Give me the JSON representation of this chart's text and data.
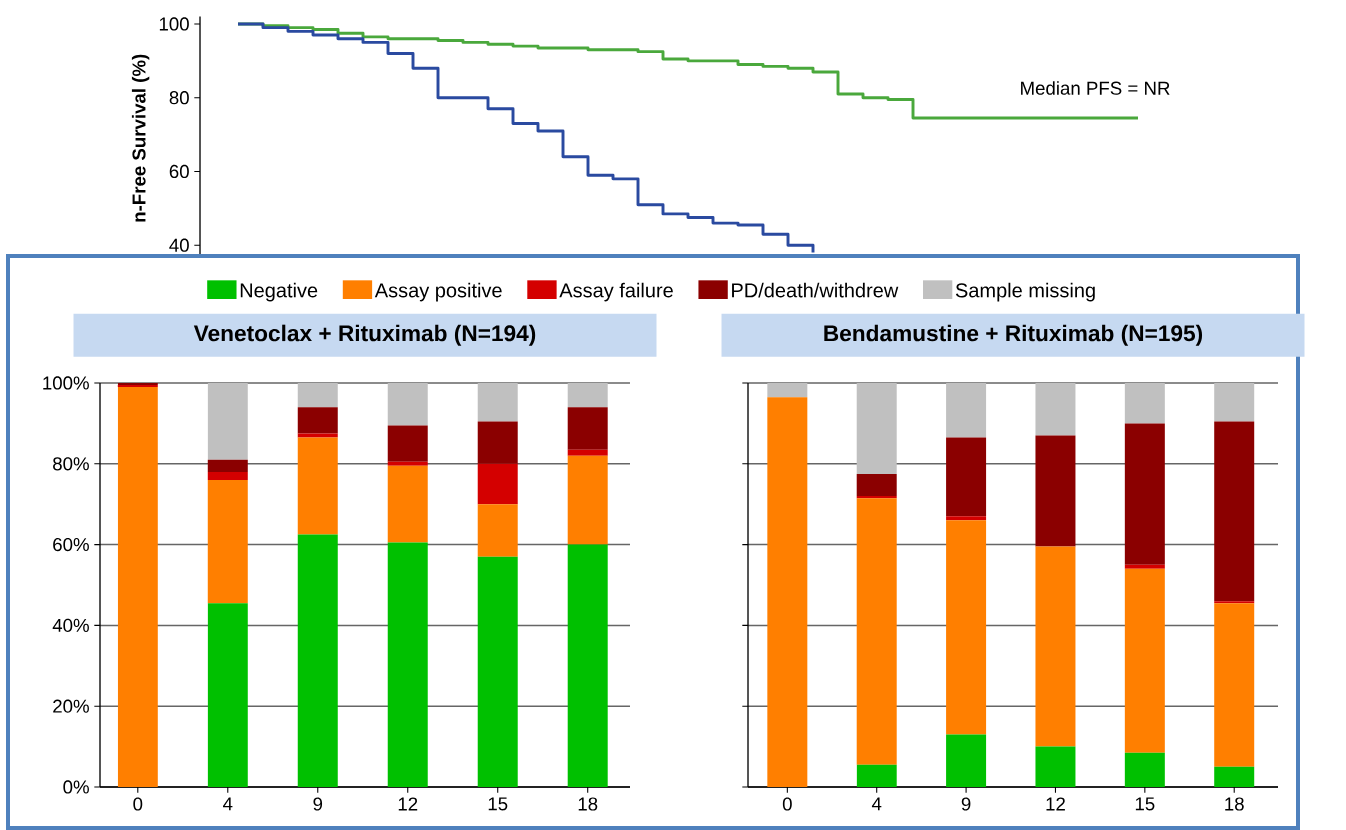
{
  "chart_data": [
    {
      "type": "step",
      "ylabel": "n-Free Survival (%)",
      "annotations": [
        "Median PFS = NR"
      ],
      "categories": [
        null,
        null,
        null,
        null,
        null,
        null,
        null,
        null,
        null,
        null,
        null,
        null,
        null,
        null,
        null,
        null,
        null,
        null,
        null,
        null,
        null,
        null,
        null,
        null,
        null,
        null,
        null,
        null,
        null,
        null,
        null,
        null,
        null,
        null,
        null,
        null,
        null
      ],
      "ylim": [
        36,
        102
      ],
      "yticks": [
        40,
        60,
        80,
        100
      ],
      "marker": "none",
      "line_style": "solid",
      "series": [
        {
          "color": "#4aa83c",
          "values": [
            100,
            99.5,
            99,
            98.5,
            97.5,
            96.5,
            96,
            96,
            95.5,
            95,
            94.5,
            94,
            93.5,
            93.5,
            93,
            93,
            92.5,
            90.5,
            90,
            90,
            89,
            88.5,
            88,
            87,
            81,
            80,
            79.5,
            74.5,
            74.5,
            74.5,
            74.5,
            74.5,
            74.5,
            74.5,
            74.5,
            74.5,
            74.5
          ]
        },
        {
          "color": "#2a4aa0",
          "values": [
            100,
            99,
            98,
            97,
            96,
            95,
            92,
            88,
            80,
            80,
            77,
            73,
            71,
            64,
            59,
            58,
            51,
            48.5,
            47.5,
            46,
            45.5,
            43,
            40,
            38,
            null,
            null,
            null,
            null,
            null,
            null,
            null,
            null,
            null,
            null,
            null,
            null,
            null
          ]
        }
      ]
    },
    {
      "type": "bar",
      "stacked": true,
      "title": "Venetoclax + Rituximab (N=194)",
      "categories": [
        "0",
        "4",
        "9",
        "12",
        "15",
        "18"
      ],
      "ylim": [
        0,
        100
      ],
      "yticks": [
        {
          "value": 0,
          "label": "0%"
        },
        {
          "value": 20,
          "label": "20%"
        },
        {
          "value": 40,
          "label": "40%"
        },
        {
          "value": 60,
          "label": "60%"
        },
        {
          "value": 80,
          "label": "80%"
        },
        {
          "value": 100,
          "label": "100%"
        }
      ],
      "grid": "y",
      "legend": "top",
      "series": [
        {
          "name": "Negative",
          "color": "#00c000",
          "values": [
            0,
            45.5,
            62.5,
            60.5,
            57,
            60
          ]
        },
        {
          "name": "Assay positive",
          "color": "#ff7f00",
          "values": [
            99,
            30.5,
            24,
            19,
            13,
            22
          ]
        },
        {
          "name": "Assay failure",
          "color": "#d40000",
          "values": [
            0.5,
            2,
            1,
            1,
            10,
            1.5
          ]
        },
        {
          "name": "PD/death/withdrew",
          "color": "#8b0000",
          "values": [
            0.5,
            3,
            6.5,
            9,
            10.5,
            10.5
          ]
        },
        {
          "name": "Sample missing",
          "color": "#c0c0c0",
          "values": [
            0,
            19,
            6,
            10.5,
            9.5,
            6
          ]
        }
      ]
    },
    {
      "type": "bar",
      "stacked": true,
      "title": "Bendamustine + Rituximab (N=195)",
      "categories": [
        "0",
        "4",
        "9",
        "12",
        "15",
        "18"
      ],
      "ylim": [
        0,
        100
      ],
      "yticks": [
        0,
        20,
        40,
        60,
        80,
        100
      ],
      "grid": "y",
      "tick_labels": "x",
      "series": [
        {
          "color": "#00c000",
          "values": [
            0,
            5.5,
            13,
            10,
            8.5,
            5
          ]
        },
        {
          "color": "#ff7f00",
          "values": [
            96.5,
            66,
            53,
            49.5,
            45.5,
            40.5
          ]
        },
        {
          "color": "#d40000",
          "values": [
            0,
            0.5,
            1,
            0,
            1,
            0.5
          ]
        },
        {
          "color": "#8b0000",
          "values": [
            0,
            5.5,
            19.5,
            27.5,
            35,
            44.5
          ]
        },
        {
          "color": "#c0c0c0",
          "values": [
            3.5,
            22.5,
            13.5,
            13,
            10,
            9.5
          ]
        }
      ]
    }
  ]
}
